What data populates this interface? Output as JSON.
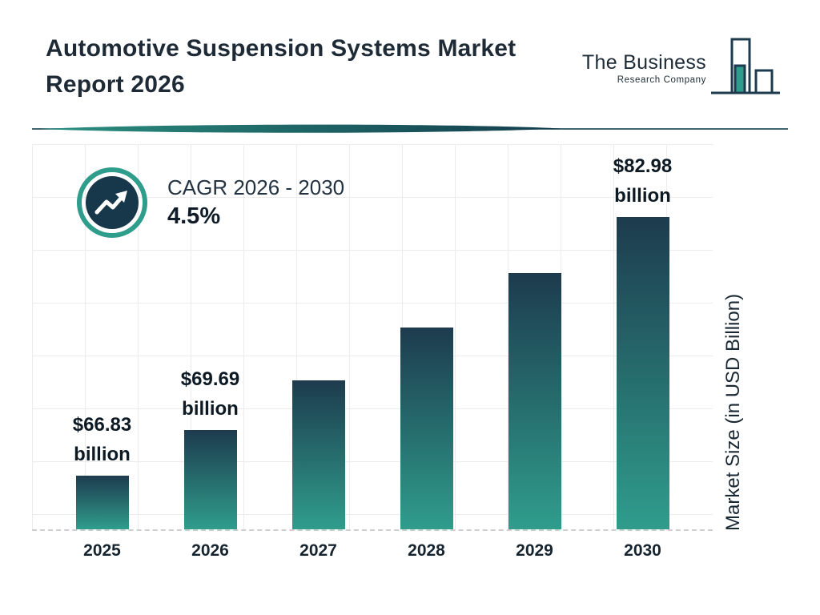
{
  "header": {
    "title": [
      "Automotive Suspension Systems Market",
      "Report 2026"
    ],
    "logo": {
      "line1": "The Business",
      "line2": "Research Company"
    }
  },
  "cagr": {
    "label": "CAGR 2026 - 2030",
    "value": "4.5%"
  },
  "chart_data": {
    "type": "bar",
    "title": "Automotive Suspension Systems Market Report 2026",
    "categories": [
      "2025",
      "2026",
      "2027",
      "2028",
      "2029",
      "2030"
    ],
    "values": [
      66.83,
      69.69,
      72.8,
      76.1,
      79.5,
      82.98
    ],
    "value_labels": [
      {
        "amount": "$66.83",
        "unit": "billion"
      },
      {
        "amount": "$69.69",
        "unit": "billion"
      },
      null,
      null,
      null,
      {
        "amount": "$82.98",
        "unit": "billion"
      }
    ],
    "xlabel": "",
    "ylabel": "Market Size (in USD Billion)",
    "ylim": [
      63.5,
      84
    ],
    "grid": true,
    "legend": false,
    "colors": {
      "bar_top": "#1d3b4e",
      "bar_bottom": "#2f9d8c",
      "accent_teal": "#2f9d8c",
      "accent_navy": "#17384a"
    }
  }
}
